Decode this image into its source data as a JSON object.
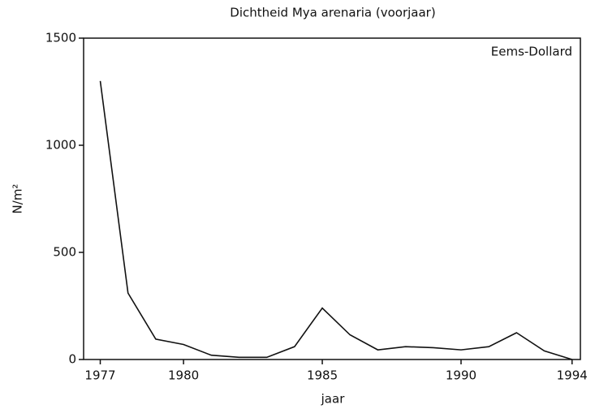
{
  "chart_data": {
    "type": "line",
    "title": "Dichtheid Mya arenaria (voorjaar)",
    "annotation": "Eems-Dollard",
    "x_label": "jaar",
    "y_label": "N/m²",
    "x": [
      1977,
      1978,
      1979,
      1980,
      1981,
      1982,
      1983,
      1984,
      1985,
      1986,
      1987,
      1988,
      1989,
      1990,
      1991,
      1992,
      1993,
      1994
    ],
    "series": [
      {
        "name": "Eems-Dollard",
        "color": "#111111",
        "values": [
          1300,
          310,
          95,
          70,
          20,
          10,
          10,
          60,
          240,
          115,
          45,
          60,
          55,
          45,
          60,
          125,
          40,
          0
        ]
      }
    ],
    "xlim": [
      1976.4,
      1994.3
    ],
    "xticks": [
      1977,
      1980,
      1985,
      1990,
      1994
    ],
    "ylim": [
      0,
      1500
    ],
    "yticks": [
      0,
      500,
      1000,
      1500
    ]
  }
}
